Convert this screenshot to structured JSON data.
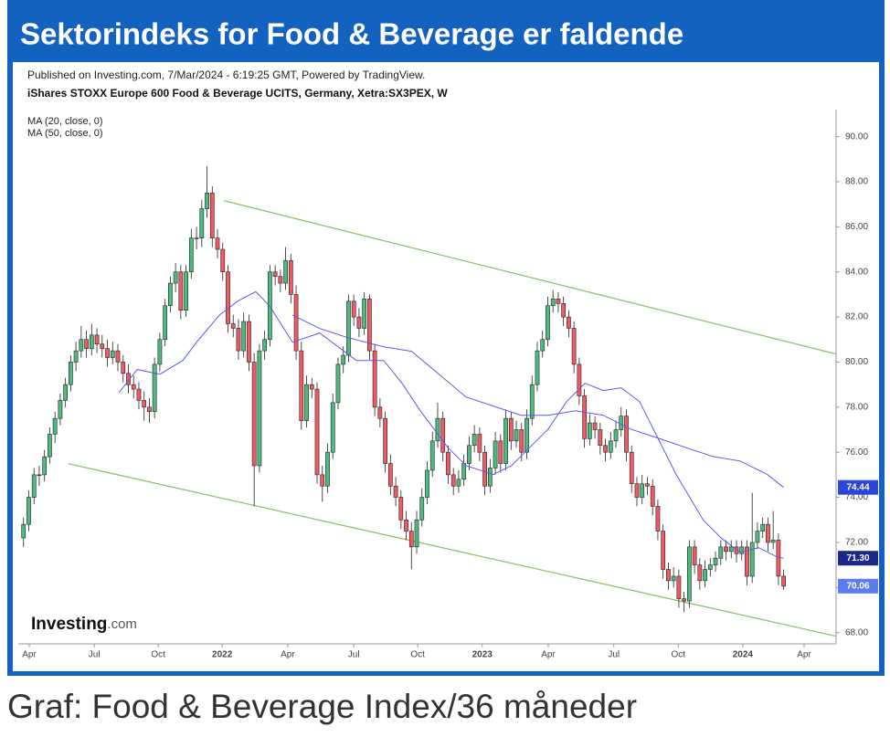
{
  "header": {
    "title": "Sektorindeks for Food & Beverage er faldende"
  },
  "footer": {
    "caption": "Graf: Food & Beverage Index/36 måneder"
  },
  "chart_data": {
    "type": "candlestick",
    "published": "Published on Investing.com, 7/Mar/2024 - 6:19:25 GMT, Powered by TradingView.",
    "instrument": "iShares STOXX Europe 600 Food & Beverage UCITS, Germany, Xetra:SX3PEX, W",
    "logo": "Investing",
    "logo_suffix": ".com",
    "up_color": "#4cbb7f",
    "down_color": "#ef5a63",
    "xlim": [
      -1,
      155
    ],
    "ylim": [
      67.5,
      91.2
    ],
    "xticks": [
      {
        "value": 1.1,
        "label": "Apr"
      },
      {
        "value": 13.5,
        "label": "Jul"
      },
      {
        "value": 25.7,
        "label": "Oct"
      },
      {
        "value": 37.9,
        "label": "2022"
      },
      {
        "value": 50.4,
        "label": "Apr"
      },
      {
        "value": 63.0,
        "label": "Jul"
      },
      {
        "value": 75.2,
        "label": "Oct"
      },
      {
        "value": 87.5,
        "label": "2023"
      },
      {
        "value": 100.1,
        "label": "Apr"
      },
      {
        "value": 112.6,
        "label": "Jul"
      },
      {
        "value": 124.9,
        "label": "Oct"
      },
      {
        "value": 137.2,
        "label": "2024"
      },
      {
        "value": 148.9,
        "label": "Apr"
      }
    ],
    "yticks": [
      {
        "value": 68,
        "label": "68.00"
      },
      {
        "value": 70,
        "label": "70.00"
      },
      {
        "value": 72,
        "label": "72.00"
      },
      {
        "value": 74,
        "label": "74.00"
      },
      {
        "value": 76,
        "label": "76.00"
      },
      {
        "value": 78,
        "label": "78.00"
      },
      {
        "value": 80,
        "label": "80.00"
      },
      {
        "value": 82,
        "label": "82.00"
      },
      {
        "value": 84,
        "label": "84.00"
      },
      {
        "value": 86,
        "label": "86.00"
      },
      {
        "value": 88,
        "label": "88.00"
      },
      {
        "value": 90,
        "label": "90.00"
      }
    ],
    "ohlc": [
      [
        72.2,
        73.1,
        71.8,
        72.8
      ],
      [
        72.8,
        74.3,
        72.5,
        74.0
      ],
      [
        74.0,
        75.3,
        73.7,
        75.0
      ],
      [
        75.0,
        75.4,
        74.5,
        75.0
      ],
      [
        75.0,
        76.1,
        74.7,
        75.8
      ],
      [
        75.8,
        77.1,
        75.5,
        76.8
      ],
      [
        76.8,
        77.8,
        76.4,
        77.5
      ],
      [
        77.5,
        78.6,
        77.2,
        78.3
      ],
      [
        78.3,
        79.3,
        78.0,
        79.0
      ],
      [
        79.0,
        80.3,
        78.7,
        80.0
      ],
      [
        80.0,
        80.9,
        79.6,
        80.5
      ],
      [
        80.5,
        81.6,
        80.2,
        81.0
      ],
      [
        81.0,
        81.4,
        80.2,
        80.6
      ],
      [
        80.6,
        81.7,
        80.3,
        81.2
      ],
      [
        81.2,
        81.5,
        80.4,
        80.8
      ],
      [
        80.8,
        81.2,
        80.2,
        80.6
      ],
      [
        80.6,
        81.0,
        79.8,
        80.2
      ],
      [
        80.2,
        80.9,
        79.9,
        80.5
      ],
      [
        80.5,
        80.8,
        79.6,
        80.0
      ],
      [
        80.0,
        80.3,
        79.1,
        79.5
      ],
      [
        79.5,
        79.9,
        78.6,
        79.0
      ],
      [
        79.0,
        79.4,
        78.4,
        78.8
      ],
      [
        78.8,
        79.1,
        77.9,
        78.3
      ],
      [
        78.3,
        78.7,
        77.4,
        78.0
      ],
      [
        78.0,
        78.4,
        77.3,
        77.8
      ],
      [
        77.8,
        80.2,
        77.5,
        79.9
      ],
      [
        79.9,
        81.3,
        79.6,
        81.0
      ],
      [
        81.0,
        82.8,
        80.7,
        82.5
      ],
      [
        82.5,
        83.8,
        82.2,
        83.5
      ],
      [
        83.5,
        84.4,
        83.1,
        84.0
      ],
      [
        84.0,
        84.3,
        81.9,
        82.3
      ],
      [
        82.3,
        84.3,
        82.0,
        84.0
      ],
      [
        84.0,
        85.9,
        83.7,
        85.5
      ],
      [
        85.5,
        86.0,
        85.0,
        85.5
      ],
      [
        85.5,
        87.2,
        85.1,
        86.8
      ],
      [
        86.8,
        88.7,
        86.4,
        87.5
      ],
      [
        87.5,
        87.8,
        85.1,
        85.5
      ],
      [
        85.5,
        85.9,
        84.6,
        85.0
      ],
      [
        85.0,
        85.3,
        83.6,
        84.0
      ],
      [
        84.0,
        84.3,
        81.3,
        81.7
      ],
      [
        81.7,
        82.1,
        81.1,
        81.5
      ],
      [
        81.5,
        81.9,
        80.1,
        80.5
      ],
      [
        80.5,
        82.2,
        80.2,
        81.8
      ],
      [
        81.8,
        82.1,
        79.6,
        80.0
      ],
      [
        80.0,
        80.4,
        73.6,
        75.4
      ],
      [
        75.4,
        80.8,
        75.1,
        80.5
      ],
      [
        80.5,
        81.4,
        80.1,
        81.0
      ],
      [
        81.0,
        84.3,
        80.7,
        84.0
      ],
      [
        84.0,
        84.3,
        83.4,
        83.8
      ],
      [
        83.8,
        84.1,
        83.1,
        83.5
      ],
      [
        83.5,
        85.1,
        83.2,
        84.5
      ],
      [
        84.5,
        84.8,
        82.6,
        83.0
      ],
      [
        83.0,
        83.4,
        80.1,
        80.5
      ],
      [
        80.5,
        80.9,
        77.0,
        77.4
      ],
      [
        77.4,
        79.4,
        77.1,
        79.0
      ],
      [
        79.0,
        79.3,
        78.4,
        78.8
      ],
      [
        78.8,
        79.1,
        74.6,
        75.0
      ],
      [
        75.0,
        75.4,
        73.8,
        74.5
      ],
      [
        74.5,
        76.4,
        74.2,
        76.0
      ],
      [
        76.0,
        78.6,
        75.7,
        78.2
      ],
      [
        78.2,
        80.2,
        77.9,
        79.9
      ],
      [
        79.9,
        80.7,
        79.5,
        80.3
      ],
      [
        80.3,
        83.0,
        80.0,
        82.7
      ],
      [
        82.7,
        83.0,
        81.6,
        82.0
      ],
      [
        82.0,
        82.4,
        81.1,
        81.5
      ],
      [
        81.5,
        83.1,
        81.2,
        82.8
      ],
      [
        82.8,
        83.0,
        80.1,
        80.5
      ],
      [
        80.5,
        80.8,
        77.6,
        78.0
      ],
      [
        78.0,
        78.4,
        77.1,
        77.5
      ],
      [
        77.5,
        77.8,
        75.1,
        75.5
      ],
      [
        75.5,
        75.9,
        74.1,
        74.5
      ],
      [
        74.5,
        74.9,
        73.6,
        74.0
      ],
      [
        74.0,
        74.3,
        72.6,
        73.0
      ],
      [
        73.0,
        73.4,
        72.1,
        72.5
      ],
      [
        72.5,
        72.9,
        70.8,
        71.8
      ],
      [
        71.8,
        73.4,
        71.5,
        73.0
      ],
      [
        73.0,
        74.4,
        72.7,
        74.0
      ],
      [
        74.0,
        75.6,
        73.7,
        75.2
      ],
      [
        75.2,
        76.9,
        74.9,
        76.5
      ],
      [
        76.5,
        78.2,
        76.2,
        77.5
      ],
      [
        77.5,
        77.8,
        75.6,
        76.0
      ],
      [
        76.0,
        76.3,
        74.6,
        75.0
      ],
      [
        75.0,
        75.3,
        74.1,
        74.5
      ],
      [
        74.5,
        75.2,
        74.2,
        74.8
      ],
      [
        74.8,
        75.9,
        74.5,
        75.5
      ],
      [
        75.5,
        76.7,
        75.2,
        76.3
      ],
      [
        76.3,
        77.2,
        76.0,
        76.8
      ],
      [
        76.8,
        77.1,
        75.6,
        76.0
      ],
      [
        76.0,
        76.3,
        74.1,
        74.5
      ],
      [
        74.5,
        75.7,
        74.2,
        75.3
      ],
      [
        75.3,
        76.9,
        75.0,
        76.5
      ],
      [
        76.5,
        76.8,
        75.1,
        75.5
      ],
      [
        75.5,
        77.9,
        75.2,
        77.5
      ],
      [
        77.5,
        77.8,
        76.1,
        76.5
      ],
      [
        76.5,
        77.4,
        76.2,
        77.0
      ],
      [
        77.0,
        77.3,
        75.6,
        76.0
      ],
      [
        76.0,
        77.9,
        75.7,
        77.5
      ],
      [
        77.5,
        79.4,
        77.2,
        79.0
      ],
      [
        79.0,
        80.9,
        78.7,
        80.5
      ],
      [
        80.5,
        81.4,
        80.2,
        81.0
      ],
      [
        81.0,
        82.9,
        80.7,
        82.5
      ],
      [
        82.5,
        83.2,
        82.2,
        82.8
      ],
      [
        82.8,
        83.1,
        82.2,
        82.6
      ],
      [
        82.6,
        82.9,
        81.6,
        82.0
      ],
      [
        82.0,
        82.3,
        81.1,
        81.5
      ],
      [
        81.5,
        81.8,
        79.5,
        79.9
      ],
      [
        79.9,
        80.2,
        78.1,
        78.5
      ],
      [
        78.5,
        78.8,
        76.2,
        76.6
      ],
      [
        76.6,
        77.7,
        76.3,
        77.3
      ],
      [
        77.3,
        77.6,
        76.6,
        77.0
      ],
      [
        77.0,
        77.3,
        75.9,
        76.3
      ],
      [
        76.3,
        76.6,
        75.6,
        76.0
      ],
      [
        76.0,
        76.9,
        75.7,
        76.5
      ],
      [
        76.5,
        77.4,
        76.2,
        77.0
      ],
      [
        77.0,
        78.0,
        76.7,
        77.6
      ],
      [
        77.6,
        77.9,
        75.6,
        76.0
      ],
      [
        76.0,
        76.3,
        74.2,
        74.6
      ],
      [
        74.6,
        74.9,
        73.6,
        74.0
      ],
      [
        74.0,
        75.0,
        73.7,
        74.6
      ],
      [
        74.6,
        74.9,
        74.1,
        74.5
      ],
      [
        74.5,
        74.8,
        73.2,
        73.6
      ],
      [
        73.6,
        73.9,
        72.1,
        72.5
      ],
      [
        72.5,
        72.8,
        70.4,
        70.8
      ],
      [
        70.8,
        71.1,
        69.9,
        70.3
      ],
      [
        70.3,
        70.9,
        70.0,
        70.5
      ],
      [
        70.5,
        70.8,
        69.1,
        69.5
      ],
      [
        69.5,
        69.8,
        68.9,
        69.4
      ],
      [
        69.4,
        72.1,
        69.1,
        71.8
      ],
      [
        71.8,
        72.1,
        70.6,
        71.0
      ],
      [
        71.0,
        71.3,
        69.9,
        70.3
      ],
      [
        70.3,
        71.2,
        70.0,
        70.8
      ],
      [
        70.8,
        71.3,
        70.5,
        71.0
      ],
      [
        71.0,
        71.6,
        70.7,
        71.3
      ],
      [
        71.3,
        72.1,
        71.0,
        71.8
      ],
      [
        71.8,
        72.1,
        71.2,
        71.6
      ],
      [
        71.6,
        72.1,
        71.3,
        71.8
      ],
      [
        71.8,
        72.1,
        71.1,
        71.5
      ],
      [
        71.5,
        72.1,
        71.2,
        71.8
      ],
      [
        71.8,
        72.1,
        70.1,
        70.5
      ],
      [
        70.5,
        74.2,
        70.2,
        72.0
      ],
      [
        72.0,
        72.9,
        71.7,
        72.5
      ],
      [
        72.5,
        73.1,
        72.2,
        72.8
      ],
      [
        72.8,
        73.1,
        71.6,
        72.0
      ],
      [
        72.0,
        73.4,
        71.7,
        72.1
      ],
      [
        72.1,
        72.4,
        70.1,
        70.5
      ],
      [
        70.5,
        70.8,
        69.9,
        70.06
      ]
    ],
    "ma": [
      {
        "name": "MA (20, close, 0)",
        "color": "#5a5af0",
        "x": [
          18.2,
          21.7,
          26.0,
          30.4,
          33.0,
          37.4,
          40.9,
          44.3,
          46.9,
          51.3,
          56.5,
          63.5,
          68.7,
          72.2,
          75.7,
          80.9,
          84.4,
          89.6,
          93.1,
          96.6,
          100.1,
          103.6,
          107.1,
          110.6,
          114.0,
          117.5,
          121.0,
          124.5,
          129.7,
          133.2,
          136.7,
          140.2,
          143.7,
          145
        ],
        "values": [
          78.65,
          79.67,
          79.46,
          80.07,
          80.88,
          82.09,
          82.71,
          83.12,
          82.5,
          80.88,
          81.29,
          80.07,
          80.07,
          79.06,
          77.84,
          76.22,
          75.41,
          75.01,
          75.41,
          76.22,
          77.03,
          78.25,
          79.06,
          78.74,
          78.86,
          78.25,
          76.63,
          75.01,
          72.98,
          72.17,
          71.56,
          71.77,
          71.36,
          71.3
        ]
      },
      {
        "name": "MA (50, close, 0)",
        "color": "#5a5af0",
        "x": [
          51.3,
          56.5,
          61.8,
          68.7,
          74.0,
          79.2,
          84.4,
          89.6,
          94.9,
          100.1,
          105.3,
          110.6,
          115.8,
          121.0,
          126.2,
          131.5,
          136.7,
          141.9,
          145
        ],
        "values": [
          82.09,
          81.49,
          81.09,
          80.68,
          80.48,
          79.47,
          78.45,
          78.05,
          77.64,
          77.64,
          77.84,
          77.64,
          77.03,
          76.63,
          76.22,
          75.81,
          75.61,
          75.01,
          74.44
        ]
      }
    ],
    "trendlines": [
      {
        "color": "#8cc36a",
        "x": [
          38.2,
          155
        ],
        "values": [
          87.16,
          80.36
        ]
      },
      {
        "color": "#8cc36a",
        "x": [
          8.6,
          155
        ],
        "values": [
          75.49,
          67.84
        ]
      }
    ],
    "price_labels": [
      {
        "value": 74.44,
        "label": "74.44",
        "color": "#2c45d8"
      },
      {
        "value": 71.3,
        "label": "71.30",
        "color": "#1b2a8a"
      },
      {
        "value": 70.06,
        "label": "70.06",
        "color": "#5b7cf0"
      }
    ]
  }
}
